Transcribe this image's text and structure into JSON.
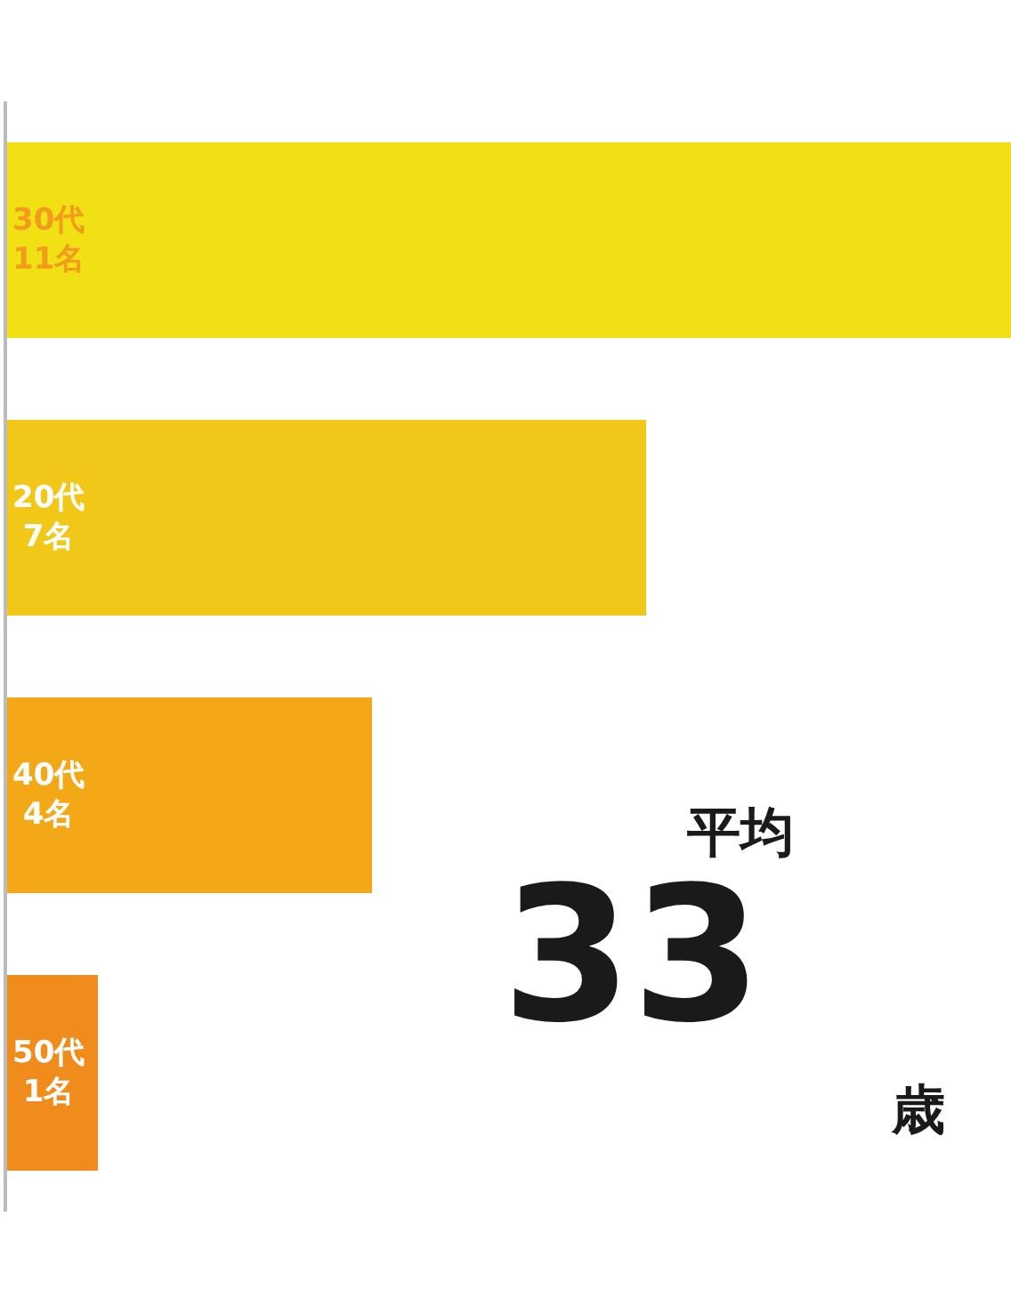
{
  "chart_data": {
    "type": "bar",
    "orientation": "horizontal",
    "categories": [
      "30代",
      "20代",
      "40代",
      "50代"
    ],
    "values": [
      11,
      7,
      4,
      1
    ],
    "colors": [
      "#f0e014",
      "#f2c818",
      "#f3a818",
      "#f08c1c"
    ],
    "value_labels": [
      "11名",
      "7名",
      "4名",
      "1名"
    ],
    "annotations": [
      "平均",
      "33",
      "歳"
    ],
    "legend": false
  }
}
